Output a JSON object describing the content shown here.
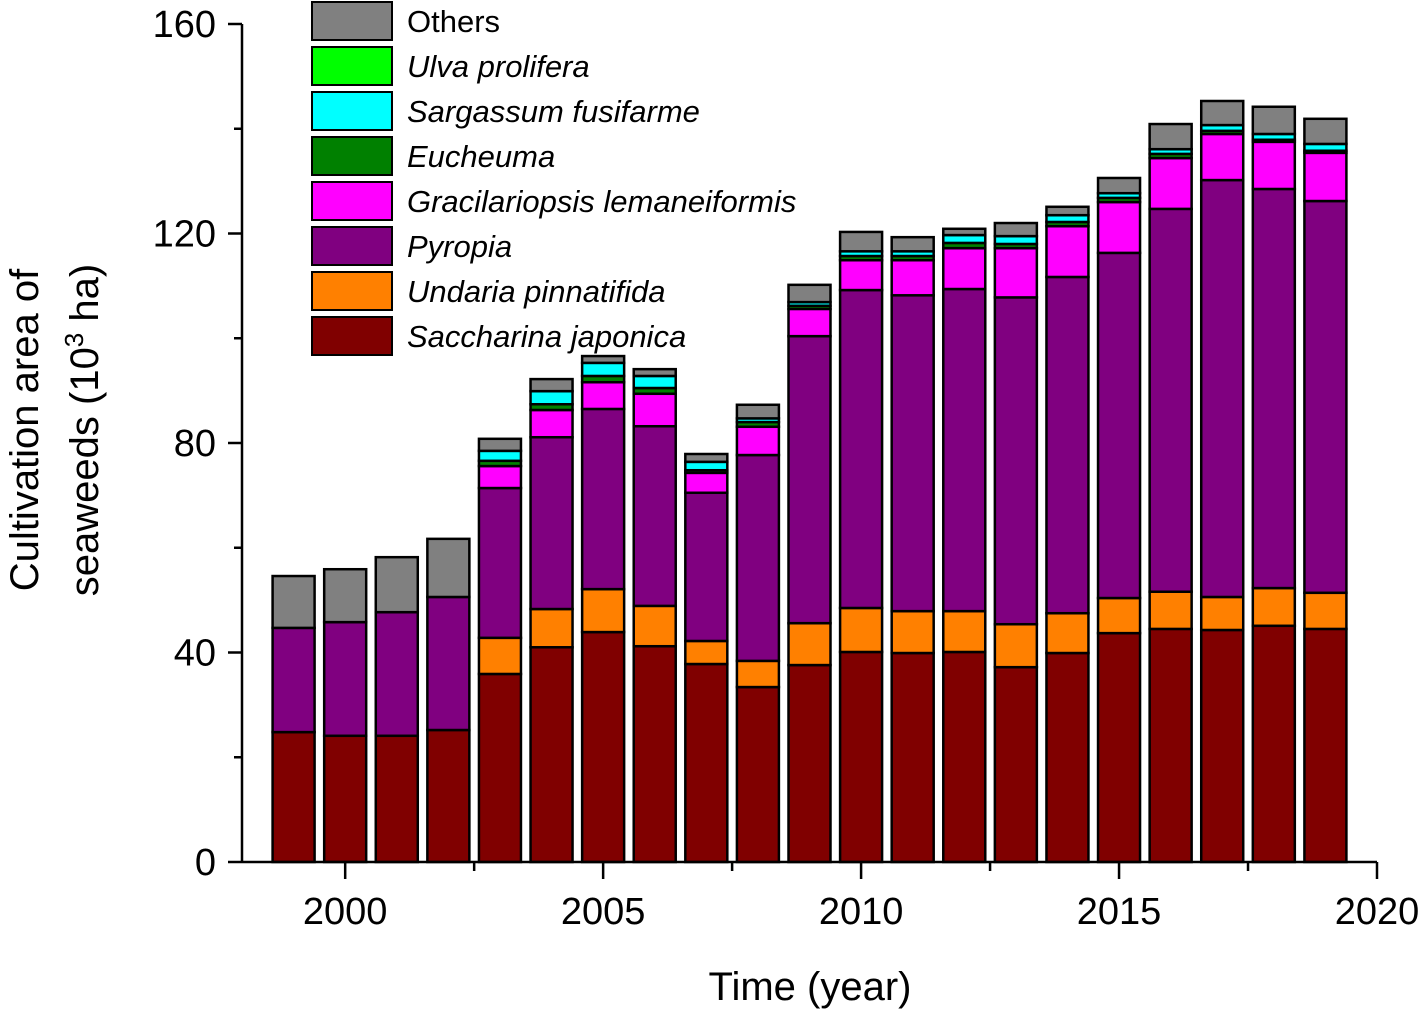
{
  "chart_data": {
    "type": "bar",
    "stacked": true,
    "title": "",
    "xlabel": "Time (year)",
    "ylabel_line1": "Cultivation area of",
    "ylabel_line2_prefix": "seaweeds (10",
    "ylabel_line2_sup": "3",
    "ylabel_line2_suffix": " ha)",
    "xlim": [
      1998,
      2020
    ],
    "ylim": [
      0,
      160
    ],
    "x_major_ticks": [
      2000,
      2005,
      2010,
      2015,
      2020
    ],
    "x_minor_ticks": [
      2002.5,
      2007.5,
      2012.5,
      2017.5
    ],
    "y_major_ticks": [
      0,
      40,
      80,
      120,
      160
    ],
    "y_minor_ticks": [
      20,
      60,
      100,
      140
    ],
    "grid": false,
    "legend_position": "top-left",
    "categories": [
      1999,
      2000,
      2001,
      2002,
      2003,
      2004,
      2005,
      2006,
      2007,
      2008,
      2009,
      2010,
      2011,
      2012,
      2013,
      2014,
      2015,
      2016,
      2017,
      2018,
      2019
    ],
    "series": [
      {
        "name": "Saccharina japonica",
        "italic": true,
        "color": "#800000",
        "values": [
          24.8,
          24.1,
          24.1,
          25.2,
          35.9,
          41.0,
          43.9,
          41.2,
          37.8,
          33.4,
          37.6,
          40.1,
          39.9,
          40.1,
          37.2,
          39.9,
          43.7,
          44.5,
          44.3,
          45.1,
          44.5
        ]
      },
      {
        "name": "Undaria pinnatifida",
        "italic": true,
        "color": "#FF8000",
        "values": [
          0,
          0,
          0,
          0,
          6.9,
          7.3,
          8.2,
          7.7,
          4.4,
          5.0,
          8.0,
          8.4,
          8.0,
          7.8,
          8.2,
          7.6,
          6.7,
          7.1,
          6.3,
          7.2,
          6.9
        ]
      },
      {
        "name": "Pyropia",
        "italic": true,
        "color": "#800080",
        "values": [
          19.9,
          21.7,
          23.6,
          25.4,
          28.6,
          32.8,
          34.4,
          34.3,
          28.3,
          39.3,
          54.8,
          60.7,
          60.3,
          61.5,
          62.4,
          64.2,
          65.9,
          73.1,
          79.6,
          76.2,
          74.8
        ]
      },
      {
        "name": "Gracilariopsis lemaneiformis",
        "italic": true,
        "color": "#FF00FF",
        "values": [
          0,
          0,
          0,
          0,
          4.2,
          5.2,
          5.1,
          6.2,
          3.8,
          5.4,
          5.2,
          5.7,
          6.7,
          7.8,
          9.4,
          9.7,
          9.7,
          9.7,
          8.8,
          9.0,
          9.2
        ]
      },
      {
        "name": "Eucheuma",
        "italic": true,
        "color": "#008000",
        "values": [
          0,
          0,
          0,
          0,
          1.0,
          1.1,
          1.2,
          1.1,
          0.5,
          0.9,
          0.6,
          0.8,
          0.8,
          1.0,
          0.8,
          0.8,
          0.8,
          0.8,
          0.6,
          0.4,
          0.4
        ]
      },
      {
        "name": "Sargassum fusifarme",
        "italic": true,
        "color": "#00FFFF",
        "values": [
          0,
          0,
          0,
          0,
          1.9,
          2.5,
          2.5,
          2.3,
          1.6,
          0.7,
          0.7,
          0.9,
          0.9,
          1.5,
          1.5,
          1.3,
          0.9,
          0.9,
          1.1,
          1.1,
          1.3
        ]
      },
      {
        "name": "Ulva prolifera",
        "italic": true,
        "color": "#00FF00",
        "values": [
          0,
          0,
          0,
          0,
          0,
          0,
          0,
          0,
          0,
          0,
          0,
          0,
          0,
          0,
          0,
          0,
          0,
          0,
          0,
          0,
          0
        ]
      },
      {
        "name": "Others",
        "italic": false,
        "color": "#808080",
        "values": [
          9.9,
          10.1,
          10.5,
          11.1,
          2.3,
          2.3,
          1.3,
          1.3,
          1.5,
          2.6,
          3.3,
          3.7,
          2.7,
          1.2,
          2.5,
          1.6,
          2.9,
          4.8,
          4.6,
          5.2,
          4.8
        ]
      }
    ],
    "legend_order": [
      "Others",
      "Ulva prolifera",
      "Sargassum fusifarme",
      "Eucheuma",
      "Gracilariopsis lemaneiformis",
      "Pyropia",
      "Undaria pinnatifida",
      "Saccharina japonica"
    ]
  }
}
